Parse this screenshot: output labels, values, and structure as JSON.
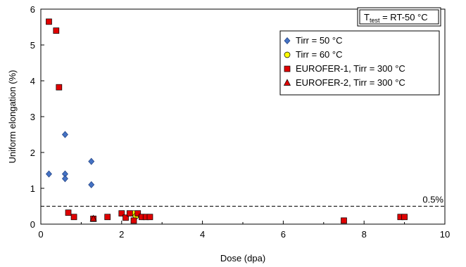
{
  "chart_data": {
    "type": "scatter",
    "xlabel": "Dose (dpa)",
    "ylabel": "Uniform elongation (%)",
    "xlim": [
      0,
      10
    ],
    "ylim": [
      0,
      6
    ],
    "xticks": [
      "0",
      "2",
      "4",
      "6",
      "8",
      "10"
    ],
    "yticks": [
      "0",
      "1",
      "2",
      "3",
      "4",
      "5",
      "6"
    ],
    "grid": false,
    "legend_position": "top-right",
    "annotation": {
      "test_temp_main": "T",
      "test_temp_sub": "test",
      "test_temp_rest": " = RT-50 °C"
    },
    "reference_line": {
      "y": 0.5,
      "label": "0.5%",
      "style": "dashed"
    },
    "series": [
      {
        "name": "Tirr = 50 °C",
        "marker": "diamond",
        "color": "#4472C4",
        "points": [
          [
            0.2,
            1.4
          ],
          [
            0.6,
            2.5
          ],
          [
            0.6,
            1.4
          ],
          [
            0.6,
            1.27
          ],
          [
            1.25,
            1.75
          ],
          [
            1.25,
            1.1
          ]
        ]
      },
      {
        "name": "Tirr = 60 °C",
        "marker": "circle",
        "color": "#FFFF00",
        "points": [
          [
            2.3,
            0.3
          ],
          [
            2.35,
            0.22
          ],
          [
            2.5,
            0.2
          ],
          [
            2.6,
            0.2
          ]
        ]
      },
      {
        "name": "EUROFER-1, Tirr = 300 °C",
        "marker": "square",
        "color": "#E00000",
        "points": [
          [
            0.2,
            5.65
          ],
          [
            0.38,
            5.4
          ],
          [
            0.45,
            3.82
          ],
          [
            0.68,
            0.32
          ],
          [
            0.82,
            0.2
          ],
          [
            1.3,
            0.15
          ],
          [
            1.65,
            0.2
          ],
          [
            2.0,
            0.3
          ],
          [
            2.1,
            0.18
          ],
          [
            2.2,
            0.3
          ],
          [
            2.3,
            0.1
          ],
          [
            2.4,
            0.3
          ],
          [
            2.5,
            0.2
          ],
          [
            2.6,
            0.2
          ],
          [
            2.7,
            0.2
          ],
          [
            7.5,
            0.1
          ],
          [
            8.9,
            0.2
          ],
          [
            9.0,
            0.2
          ]
        ]
      },
      {
        "name": "EUROFER-2, Tirr = 300 °C",
        "marker": "triangle",
        "color": "#E00000",
        "points": [
          [
            1.3,
            0.15
          ]
        ]
      }
    ]
  }
}
